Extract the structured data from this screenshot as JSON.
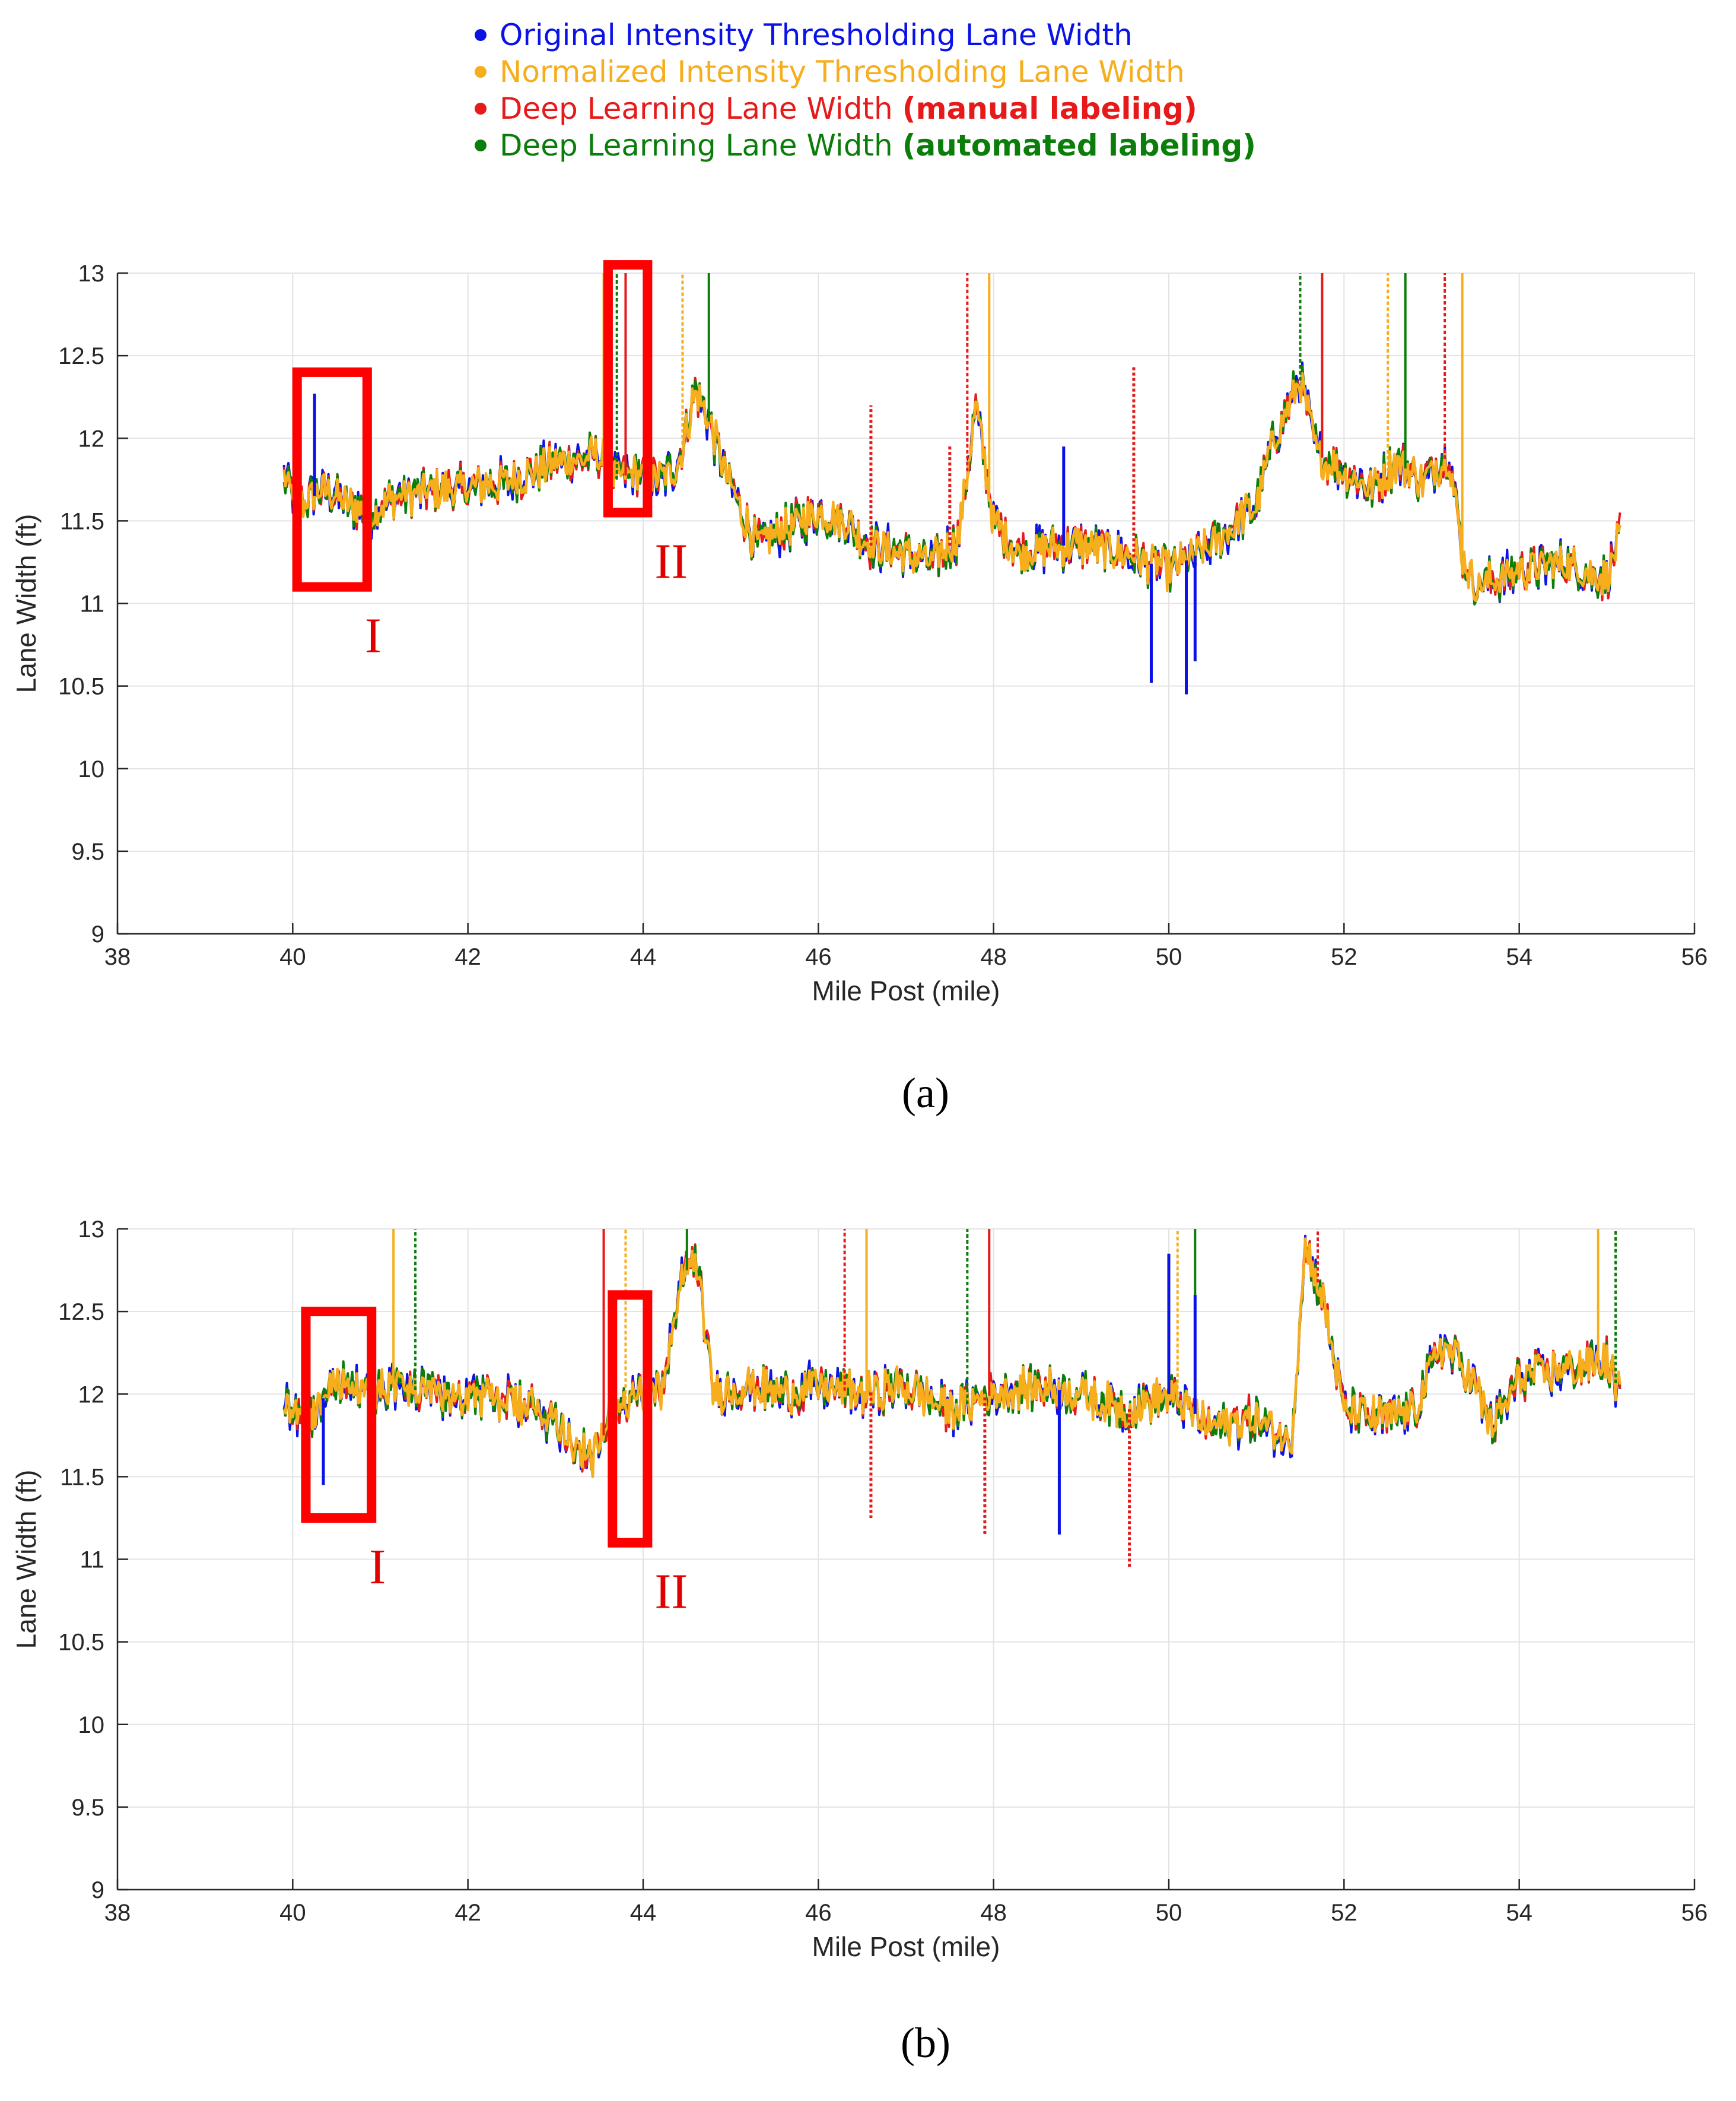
{
  "legend": [
    {
      "prefix": "Original Intensity Thresholding Lane Width",
      "suffix": "",
      "color": "#0a12e6"
    },
    {
      "prefix": "Normalized Intensity Thresholding Lane Width",
      "suffix": "",
      "color": "#f7ae1d"
    },
    {
      "prefix": "Deep Learning Lane Width ",
      "suffix": "(manual labeling)",
      "color": "#e61a1a"
    },
    {
      "prefix": "Deep Learning Lane Width ",
      "suffix": "(automated labeling)",
      "color": "#0a7d0a"
    }
  ],
  "chart_data": [
    {
      "type": "line",
      "panel": "(a)",
      "xlabel": "Mile Post (mile)",
      "ylabel": "Lane Width (ft)",
      "xlim": [
        38,
        56
      ],
      "ylim": [
        9,
        13
      ],
      "xticks": [
        "38",
        "40",
        "42",
        "44",
        "46",
        "48",
        "50",
        "52",
        "54",
        "56"
      ],
      "yticks": [
        "9",
        "9.5",
        "10",
        "10.5",
        "11",
        "11.5",
        "12",
        "12.5",
        "13"
      ],
      "grid": true,
      "x_range_of_data": [
        39.9,
        55.15
      ],
      "baseline": {
        "x": [
          39.9,
          40.1,
          40.4,
          40.6,
          40.9,
          41.2,
          41.5,
          42.0,
          42.5,
          43.0,
          43.5,
          43.7,
          43.9,
          44.2,
          44.4,
          44.6,
          44.75,
          45.0,
          45.3,
          45.6,
          46.0,
          46.3,
          46.6,
          47.0,
          47.3,
          47.6,
          47.8,
          48.0,
          48.3,
          48.7,
          49.0,
          49.5,
          50.0,
          50.5,
          51.0,
          51.2,
          51.5,
          51.7,
          52.0,
          52.3,
          52.6,
          52.9,
          53.2,
          53.35,
          53.5,
          54.0,
          54.5,
          55.0,
          55.15
        ],
        "y": [
          11.75,
          11.6,
          11.7,
          11.6,
          11.55,
          11.65,
          11.68,
          11.7,
          11.75,
          11.85,
          11.9,
          11.75,
          11.8,
          11.75,
          11.85,
          12.3,
          12.1,
          11.7,
          11.35,
          11.45,
          11.55,
          11.5,
          11.35,
          11.3,
          11.25,
          11.4,
          12.2,
          11.5,
          11.3,
          11.35,
          11.35,
          11.3,
          11.2,
          11.35,
          11.6,
          12.0,
          12.35,
          11.9,
          11.8,
          11.7,
          11.85,
          11.75,
          11.9,
          11.3,
          11.1,
          11.2,
          11.25,
          11.15,
          11.4
        ]
      },
      "spikes_to_top": [
        43.55,
        43.7,
        43.8,
        44.45,
        44.75,
        47.7,
        47.95,
        51.5,
        51.75,
        52.5,
        52.7,
        53.15,
        53.35
      ],
      "original_outliers": [
        [
          40.25,
          12.27
        ],
        [
          48.8,
          11.95
        ],
        [
          49.8,
          10.52
        ],
        [
          50.2,
          10.45
        ],
        [
          50.3,
          10.65
        ]
      ],
      "manual_outliers": [
        [
          46.6,
          12.2
        ],
        [
          47.5,
          11.95
        ],
        [
          49.6,
          12.43
        ]
      ],
      "boxes": [
        {
          "label": "I",
          "x0": 40.05,
          "x1": 40.85,
          "y0": 11.1,
          "y1": 12.4
        },
        {
          "label": "II",
          "x0": 43.6,
          "x1": 44.05,
          "y0": 11.55,
          "y1": 13.05
        }
      ]
    },
    {
      "type": "line",
      "panel": "(b)",
      "xlabel": "Mile Post (mile)",
      "ylabel": "Lane Width (ft)",
      "xlim": [
        38,
        56
      ],
      "ylim": [
        9,
        13
      ],
      "xticks": [
        "38",
        "40",
        "42",
        "44",
        "46",
        "48",
        "50",
        "52",
        "54",
        "56"
      ],
      "yticks": [
        "9",
        "9.5",
        "10",
        "10.5",
        "11",
        "11.5",
        "12",
        "12.5",
        "13"
      ],
      "grid": true,
      "x_range_of_data": [
        39.9,
        55.15
      ],
      "baseline": {
        "x": [
          39.9,
          40.2,
          40.5,
          40.8,
          41.2,
          41.6,
          42.0,
          42.5,
          43.0,
          43.4,
          43.6,
          43.9,
          44.2,
          44.45,
          44.6,
          44.8,
          45.2,
          45.6,
          46.0,
          46.5,
          47.0,
          47.5,
          48.0,
          48.5,
          49.0,
          49.5,
          50.0,
          50.5,
          51.0,
          51.4,
          51.55,
          51.75,
          52.0,
          52.5,
          52.8,
          53.1,
          53.4,
          53.7,
          54.0,
          54.5,
          55.0,
          55.15
        ],
        "y": [
          11.95,
          11.85,
          12.1,
          12.0,
          12.05,
          12.0,
          12.0,
          11.95,
          11.85,
          11.6,
          11.8,
          12.05,
          12.0,
          12.7,
          12.85,
          12.0,
          12.05,
          12.0,
          12.05,
          12.0,
          12.05,
          11.9,
          12.0,
          12.05,
          12.0,
          11.9,
          12.0,
          11.8,
          11.85,
          11.7,
          12.9,
          12.6,
          11.9,
          11.85,
          11.9,
          12.3,
          12.15,
          11.8,
          12.1,
          12.15,
          12.2,
          12.0
        ]
      },
      "spikes_to_top": [
        41.15,
        41.4,
        43.55,
        43.8,
        44.5,
        46.3,
        46.55,
        47.7,
        47.95,
        50.1,
        50.3,
        51.7,
        54.9,
        55.1
      ],
      "original_outliers": [
        [
          40.35,
          11.45
        ],
        [
          48.75,
          11.15
        ],
        [
          50.0,
          12.85
        ],
        [
          50.3,
          12.6
        ]
      ],
      "manual_outliers": [
        [
          46.6,
          11.25
        ],
        [
          47.9,
          11.15
        ],
        [
          49.55,
          10.95
        ]
      ],
      "boxes": [
        {
          "label": "I",
          "x0": 40.15,
          "x1": 40.9,
          "y0": 11.25,
          "y1": 12.5
        },
        {
          "label": "II",
          "x0": 43.65,
          "x1": 44.05,
          "y0": 11.1,
          "y1": 12.6
        }
      ]
    }
  ],
  "captions": [
    "(a)",
    "(b)"
  ]
}
